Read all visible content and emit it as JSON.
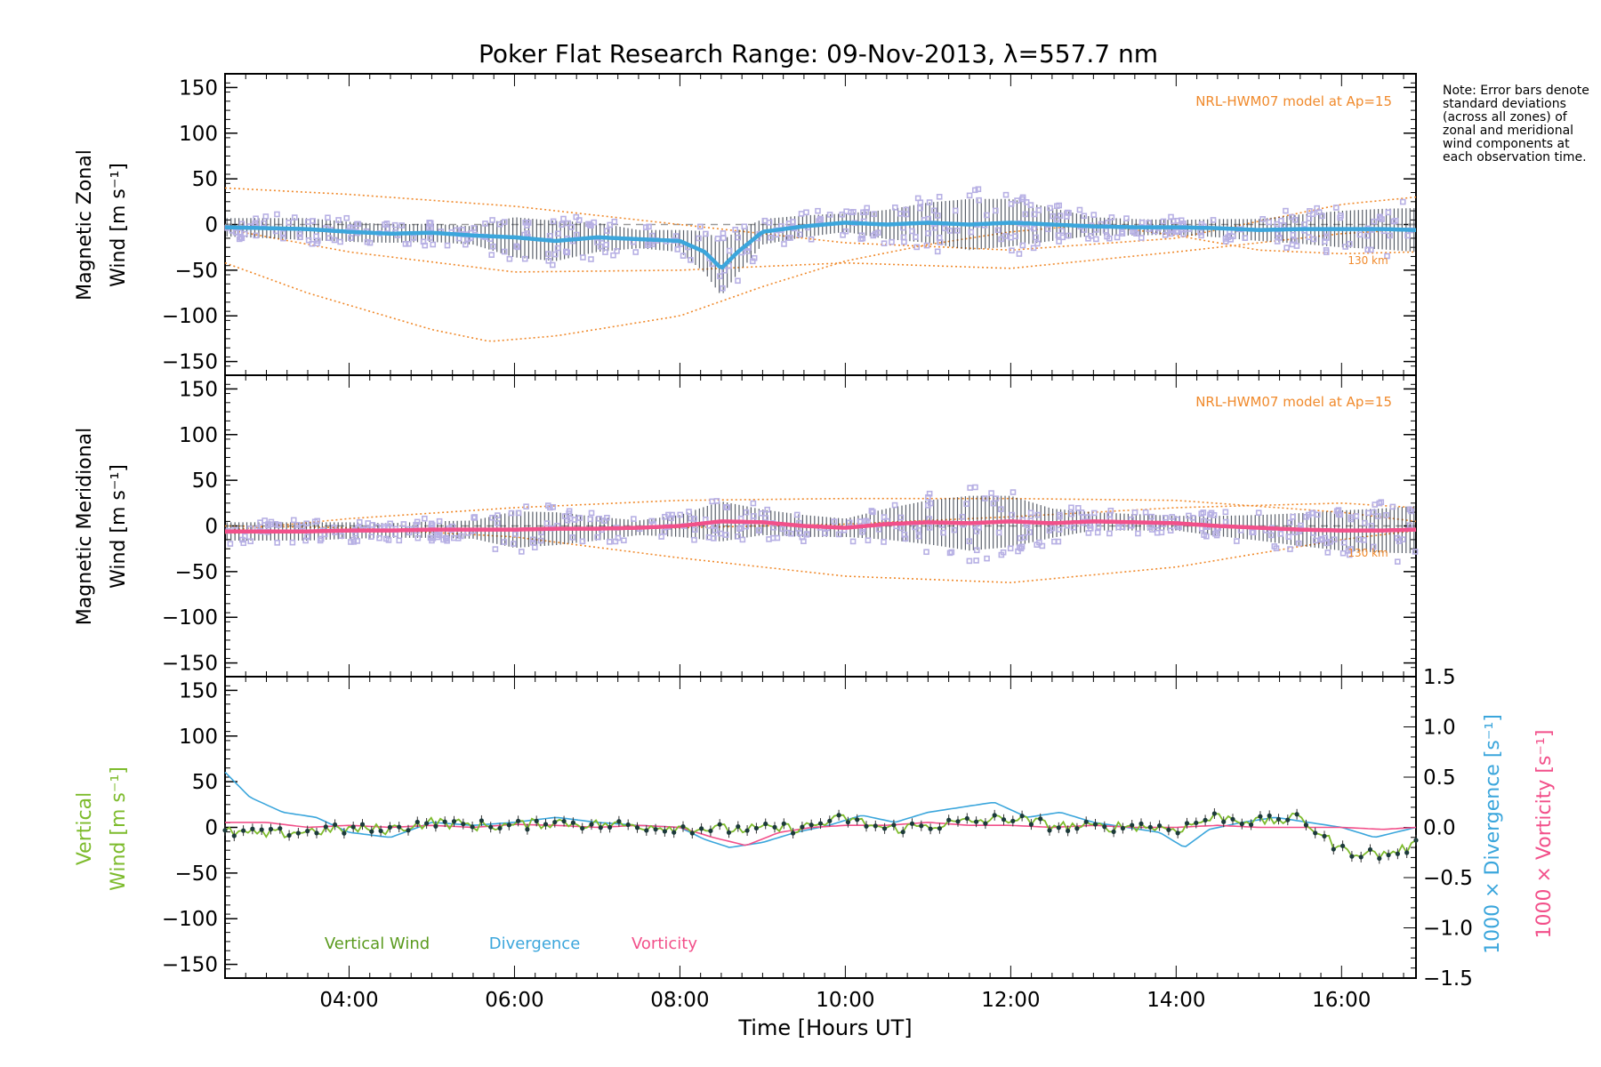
{
  "title": "Poker Flat Research Range: 09-Nov-2013, λ=557.7 nm",
  "xlabel": "Time [Hours UT]",
  "note": "Note: Error bars denote standard deviations (across all zones) of zonal and meridional wind components at each observation time.",
  "colors": {
    "zonal": "#3ba6dc",
    "meridional": "#f2508a",
    "vertical": "#7dbb2c",
    "divergence": "#3ba6dc",
    "vorticity": "#f2508a",
    "model": "#f08a2c",
    "scatter": "#b7b0e4",
    "errorbar": "#222a38"
  },
  "chart_data": [
    {
      "type": "line",
      "panel": "zonal",
      "ylabel_line1": "Magnetic Zonal",
      "ylabel_line2": "Wind [m s⁻¹]",
      "model_label": "NRL-HWM07 model at Ap=15",
      "model_height_label": "130 km",
      "ylim": [
        -165,
        165
      ],
      "yticks": [
        -150,
        -100,
        -50,
        0,
        50,
        100,
        150
      ],
      "xlim": [
        2.5,
        16.9
      ],
      "xticks": [
        4,
        6,
        8,
        10,
        12,
        14,
        16
      ],
      "xticklabels": [
        "04:00",
        "06:00",
        "08:00",
        "10:00",
        "12:00",
        "14:00",
        "16:00"
      ],
      "series": [
        {
          "name": "Zonal wind",
          "x": [
            2.5,
            3.0,
            3.5,
            4.0,
            4.5,
            5.0,
            5.5,
            6.0,
            6.5,
            7.0,
            7.5,
            8.0,
            8.3,
            8.5,
            8.7,
            9.0,
            9.5,
            10.0,
            10.5,
            11.0,
            11.5,
            12.0,
            12.5,
            13.0,
            13.5,
            14.0,
            14.5,
            15.0,
            15.5,
            16.0,
            16.5,
            16.9
          ],
          "y": [
            -3,
            -4,
            -5,
            -8,
            -10,
            -9,
            -12,
            -14,
            -18,
            -14,
            -16,
            -18,
            -30,
            -48,
            -30,
            -8,
            -2,
            2,
            0,
            2,
            0,
            2,
            0,
            -2,
            -3,
            -3,
            -4,
            -6,
            -5,
            -5,
            -5,
            -6
          ]
        },
        {
          "name": "Error bar spread",
          "x": [
            2.5,
            3.5,
            4.5,
            5.5,
            6.0,
            6.5,
            7.5,
            8.0,
            8.5,
            9.0,
            10.0,
            11.0,
            11.5,
            12.0,
            12.5,
            13.0,
            14.0,
            15.0,
            16.0,
            16.9
          ],
          "y": [
            10,
            12,
            10,
            10,
            22,
            22,
            10,
            12,
            30,
            14,
            10,
            22,
            28,
            26,
            18,
            10,
            8,
            12,
            20,
            24
          ]
        },
        {
          "name": "HWM07 upper",
          "x": [
            2.5,
            4,
            6,
            8,
            10,
            12,
            14,
            16,
            16.9
          ],
          "y": [
            40,
            33,
            20,
            0,
            -20,
            -28,
            -15,
            22,
            30
          ]
        },
        {
          "name": "HWM07 mid",
          "x": [
            2.5,
            4,
            6,
            8,
            10,
            12,
            14,
            16,
            16.9
          ],
          "y": [
            -5,
            -30,
            -52,
            -50,
            -42,
            -48,
            -30,
            -10,
            -5
          ]
        },
        {
          "name": "HWM07 lower",
          "x": [
            2.5,
            3.5,
            5,
            5.7,
            6.5,
            8,
            9,
            10,
            11,
            12,
            13,
            14,
            15,
            16,
            16.9
          ],
          "y": [
            -42,
            -75,
            -115,
            -128,
            -122,
            -100,
            -68,
            -40,
            -22,
            -8,
            0,
            -12,
            -28,
            -32,
            -30
          ]
        }
      ]
    },
    {
      "type": "line",
      "panel": "meridional",
      "ylabel_line1": "Magnetic Meridional",
      "ylabel_line2": "Wind [m s⁻¹]",
      "model_label": "NRL-HWM07 model at Ap=15",
      "model_height_label": "130 km",
      "ylim": [
        -165,
        165
      ],
      "yticks": [
        -150,
        -100,
        -50,
        0,
        50,
        100,
        150
      ],
      "series": [
        {
          "name": "Meridional wind",
          "x": [
            2.5,
            3.0,
            3.5,
            4.0,
            4.5,
            5.0,
            5.5,
            6.0,
            6.5,
            7.0,
            7.5,
            8.0,
            8.5,
            9.0,
            9.5,
            10.0,
            10.5,
            11.0,
            11.5,
            12.0,
            12.5,
            13.0,
            13.5,
            14.0,
            14.5,
            15.0,
            15.5,
            16.0,
            16.5,
            16.9
          ],
          "y": [
            -6,
            -6,
            -6,
            -5,
            -5,
            -4,
            -4,
            -4,
            -3,
            -3,
            -2,
            0,
            5,
            4,
            0,
            -2,
            2,
            4,
            3,
            5,
            3,
            5,
            4,
            3,
            0,
            -2,
            -4,
            -5,
            -5,
            -4
          ]
        },
        {
          "name": "Error bar spread",
          "x": [
            2.5,
            3.5,
            4.5,
            5.5,
            6.0,
            6.5,
            7.5,
            8.0,
            8.5,
            9.0,
            10.0,
            11.0,
            11.5,
            12.0,
            12.5,
            13.0,
            14.0,
            15.0,
            16.0,
            16.9
          ],
          "y": [
            10,
            10,
            8,
            10,
            20,
            18,
            8,
            12,
            22,
            14,
            10,
            24,
            30,
            28,
            16,
            10,
            8,
            14,
            22,
            26
          ]
        },
        {
          "name": "HWM07 a",
          "x": [
            2.5,
            4,
            6,
            8,
            10,
            12,
            14,
            16,
            16.9
          ],
          "y": [
            -5,
            8,
            20,
            28,
            30,
            30,
            28,
            15,
            5
          ]
        },
        {
          "name": "HWM07 b",
          "x": [
            2.5,
            4,
            6,
            8,
            10,
            12,
            14,
            16,
            16.9
          ],
          "y": [
            0,
            -2,
            -12,
            -35,
            -55,
            -62,
            -45,
            -15,
            -5
          ]
        },
        {
          "name": "HWM07 c",
          "x": [
            2.5,
            4,
            6,
            8,
            10,
            12,
            14,
            16,
            16.9
          ],
          "y": [
            -8,
            -6,
            -4,
            -2,
            2,
            10,
            20,
            25,
            20
          ]
        }
      ]
    },
    {
      "type": "line",
      "panel": "vertical",
      "ylabel_line1": "Vertical",
      "ylabel_line2": "Wind [m s⁻¹]",
      "y2label_div": "1000 × Divergence [s⁻¹]",
      "y2label_vort": "1000 × Vorticity [s⁻¹]",
      "ylim": [
        -165,
        165
      ],
      "yticks": [
        -150,
        -100,
        -50,
        0,
        50,
        100,
        150
      ],
      "y2lim": [
        -1.5,
        1.5
      ],
      "y2ticks": [
        -1.5,
        -1.0,
        -0.5,
        0.0,
        0.5,
        1.0,
        1.5
      ],
      "y2ticklabels": [
        "-1.5",
        "-1.0",
        "-0.5",
        "0.0",
        "0.5",
        "1.0",
        "1.5"
      ],
      "legend": [
        "Vertical Wind",
        "Divergence",
        "Vorticity"
      ],
      "series": [
        {
          "name": "Vertical Wind",
          "axis": "left",
          "x": [
            2.5,
            3.0,
            3.5,
            4.0,
            4.5,
            5.0,
            5.5,
            6.0,
            6.5,
            7.0,
            7.5,
            8.0,
            8.5,
            9.0,
            9.5,
            10.0,
            10.5,
            11.0,
            11.5,
            12.0,
            12.5,
            13.0,
            13.5,
            14.0,
            14.5,
            15.0,
            15.5,
            16.0,
            16.5,
            16.9
          ],
          "y": [
            -5,
            -8,
            -4,
            -2,
            -2,
            6,
            2,
            2,
            6,
            3,
            2,
            0,
            -2,
            -2,
            0,
            10,
            -2,
            2,
            6,
            10,
            2,
            0,
            2,
            -2,
            12,
            6,
            10,
            -25,
            -30,
            -20
          ]
        },
        {
          "name": "Divergence",
          "axis": "right",
          "x": [
            2.5,
            2.8,
            3.2,
            3.6,
            4.0,
            4.5,
            5.0,
            5.5,
            6.0,
            6.5,
            7.0,
            7.5,
            8.0,
            8.3,
            8.6,
            9.0,
            9.4,
            9.8,
            10.2,
            10.6,
            11.0,
            11.4,
            11.8,
            12.2,
            12.6,
            13.0,
            13.4,
            13.8,
            14.1,
            14.4,
            14.8,
            15.2,
            15.6,
            16.0,
            16.4,
            16.9
          ],
          "y": [
            0.55,
            0.3,
            0.15,
            0.1,
            -0.05,
            -0.1,
            0.05,
            0.02,
            0.05,
            0.1,
            0.05,
            0.02,
            0.0,
            -0.12,
            -0.2,
            -0.15,
            -0.05,
            0.02,
            0.12,
            0.05,
            0.15,
            0.2,
            0.25,
            0.1,
            0.15,
            0.05,
            0.0,
            -0.05,
            -0.2,
            -0.02,
            0.05,
            0.1,
            0.05,
            0.0,
            -0.1,
            0.0
          ]
        },
        {
          "name": "Vorticity",
          "axis": "right",
          "x": [
            2.5,
            3.0,
            3.5,
            4.0,
            4.5,
            5.0,
            5.5,
            6.0,
            6.5,
            7.0,
            7.5,
            8.0,
            8.4,
            8.8,
            9.2,
            9.6,
            10.0,
            10.5,
            11.0,
            11.5,
            12.0,
            12.5,
            13.0,
            13.5,
            14.0,
            14.5,
            15.0,
            15.5,
            16.0,
            16.5,
            16.9
          ],
          "y": [
            0.05,
            0.05,
            0.0,
            0.02,
            0.0,
            0.02,
            0.0,
            0.03,
            0.02,
            0.0,
            0.02,
            0.0,
            -0.1,
            -0.18,
            -0.05,
            0.0,
            0.02,
            0.02,
            0.05,
            0.02,
            0.02,
            0.0,
            0.02,
            0.0,
            0.0,
            0.02,
            0.0,
            0.0,
            0.0,
            -0.02,
            0.0
          ]
        }
      ]
    }
  ]
}
